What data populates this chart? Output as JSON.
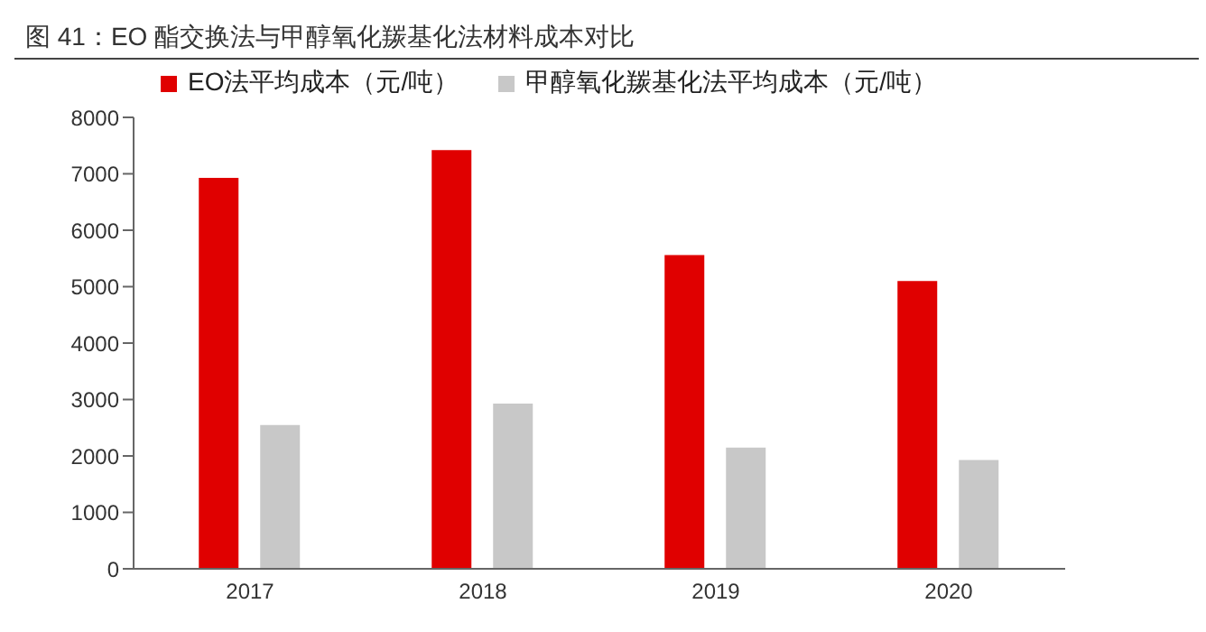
{
  "chart_data": {
    "type": "bar",
    "title": "图 41：EO 酯交换法与甲醇氧化羰基化法材料成本对比",
    "categories": [
      "2017",
      "2018",
      "2019",
      "2020"
    ],
    "series": [
      {
        "name": "EO法平均成本（元/吨）",
        "color": "#e00000",
        "values": [
          6930,
          7420,
          5560,
          5100
        ]
      },
      {
        "name": "甲醇氧化羰基化法平均成本（元/吨）",
        "color": "#c8c8c8",
        "values": [
          2550,
          2930,
          2150,
          1930
        ]
      }
    ],
    "ylim": [
      0,
      8000
    ],
    "yticks": [
      0,
      1000,
      2000,
      3000,
      4000,
      5000,
      6000,
      7000,
      8000
    ],
    "grid": false,
    "legend": "top"
  }
}
